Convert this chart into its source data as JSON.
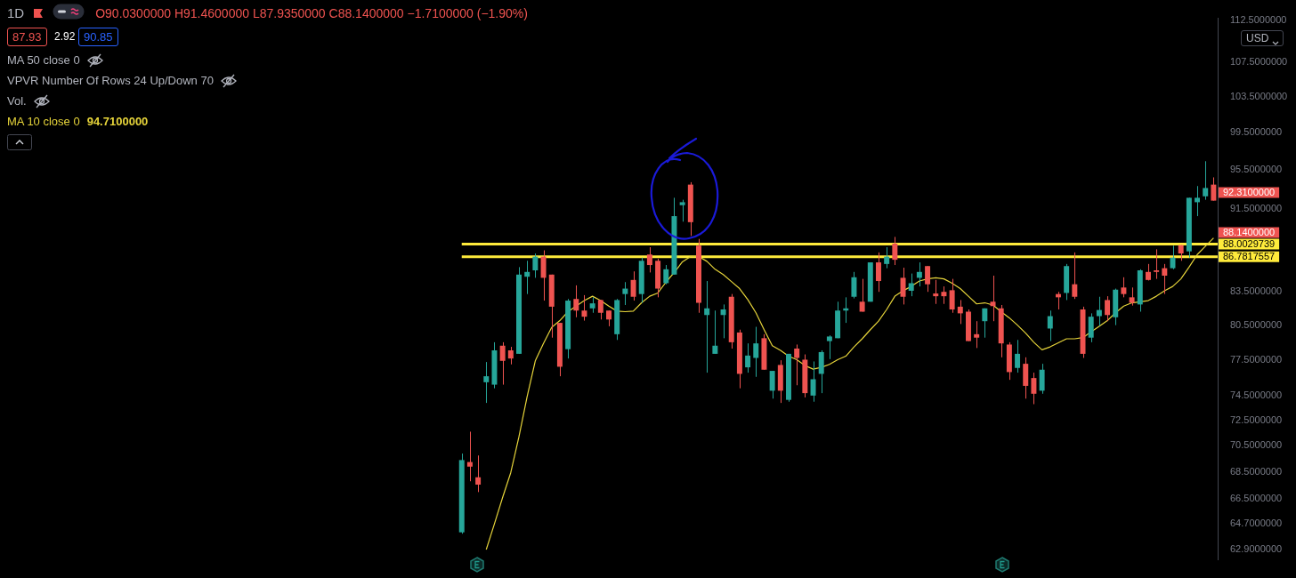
{
  "chart_data": {
    "type": "candlestick",
    "title": "1D",
    "categories": [
      null,
      null,
      null,
      null,
      null,
      null,
      null,
      null,
      null,
      null,
      null,
      null,
      null,
      null,
      null,
      null,
      null,
      null,
      null,
      null,
      null,
      null,
      null,
      null,
      null,
      null,
      null,
      null,
      null,
      null,
      null,
      null,
      null,
      null,
      null,
      null,
      null,
      null,
      null,
      null,
      null,
      null,
      null,
      null,
      null,
      null,
      null,
      null,
      null,
      null,
      null,
      null,
      null,
      null,
      null,
      null,
      null,
      null,
      null,
      null,
      null,
      null,
      null,
      null,
      null,
      null,
      null,
      null,
      null,
      null,
      null,
      null,
      null,
      null,
      null,
      null,
      null,
      null,
      null,
      null,
      null,
      null,
      null,
      null,
      null,
      null,
      null,
      null,
      null,
      null,
      null,
      null,
      null,
      null,
      null,
      null,
      null,
      null,
      null,
      null,
      null,
      null,
      null,
      null,
      null,
      null,
      null,
      null,
      null,
      null,
      null,
      null,
      null,
      null,
      null,
      null,
      null,
      null,
      null,
      null,
      null,
      null,
      null,
      null,
      null,
      null,
      null,
      null,
      null,
      null,
      null,
      null,
      null,
      null,
      null,
      null,
      null,
      null,
      null,
      null,
      null,
      null,
      null,
      null,
      null,
      null,
      null,
      null,
      null
    ],
    "ohlc": [
      null,
      null,
      null,
      null,
      null,
      null,
      null,
      null,
      null,
      null,
      null,
      null,
      null,
      null,
      null,
      null,
      null,
      null,
      null,
      null,
      null,
      null,
      null,
      null,
      null,
      null,
      null,
      null,
      null,
      null,
      null,
      null,
      null,
      null,
      null,
      null,
      null,
      null,
      null,
      null,
      null,
      null,
      null,
      null,
      null,
      null,
      null,
      null,
      null,
      null,
      null,
      null,
      null,
      null,
      null,
      null,
      [
        64.1,
        69.9,
        64.0,
        69.4
      ],
      [
        69.25,
        71.6,
        67.8,
        68.9
      ],
      [
        68.1,
        69.75,
        67.0,
        67.55
      ],
      [
        75.6,
        77.3,
        73.9,
        76.1
      ],
      [
        75.4,
        79.0,
        75.1,
        78.3
      ],
      [
        78.7,
        79.0,
        75.4,
        77.4
      ],
      [
        78.3,
        78.6,
        77.1,
        77.6
      ],
      [
        78.0,
        85.8,
        78.0,
        85.1
      ],
      [
        84.9,
        86.4,
        83.3,
        85.35
      ],
      [
        85.5,
        87.1,
        84.8,
        86.8
      ],
      [
        86.8,
        87.4,
        82.7,
        84.8
      ],
      [
        85.1,
        85.1,
        79.4,
        82.15
      ],
      [
        80.7,
        80.7,
        76.1,
        76.9
      ],
      [
        78.4,
        82.85,
        77.6,
        82.7
      ],
      [
        82.85,
        84.1,
        81.2,
        81.8
      ],
      [
        81.8,
        83.2,
        80.9,
        81.25
      ],
      [
        82.0,
        83.0,
        81.6,
        82.45
      ],
      [
        82.75,
        82.75,
        81.0,
        81.6
      ],
      [
        81.8,
        81.8,
        80.4,
        81.0
      ],
      [
        79.7,
        82.85,
        79.2,
        82.75
      ],
      [
        83.3,
        84.4,
        82.3,
        83.8
      ],
      [
        84.6,
        85.4,
        82.7,
        83.05
      ],
      [
        83.3,
        86.7,
        82.5,
        86.4
      ],
      [
        87.0,
        87.7,
        85.3,
        86.0
      ],
      [
        86.4,
        86.6,
        83.0,
        83.8
      ],
      [
        84.3,
        86.0,
        84.2,
        85.6
      ],
      [
        85.1,
        92.6,
        85.1,
        90.75
      ],
      [
        91.85,
        92.4,
        90.2,
        92.15
      ],
      [
        93.95,
        94.2,
        88.8,
        90.15
      ],
      [
        87.85,
        88.5,
        81.6,
        82.5
      ],
      [
        81.4,
        84.5,
        76.4,
        82.0
      ],
      [
        78.0,
        81.8,
        78.0,
        78.7
      ],
      [
        81.4,
        82.35,
        79.35,
        81.9
      ],
      [
        83.05,
        83.3,
        78.45,
        79.0
      ],
      [
        79.85,
        80.1,
        75.1,
        76.3
      ],
      [
        76.85,
        78.9,
        76.4,
        77.85
      ],
      [
        77.65,
        80.35,
        76.05,
        78.9
      ],
      [
        79.35,
        79.7,
        76.65,
        76.65
      ],
      [
        74.9,
        76.55,
        74.25,
        76.55
      ],
      [
        77.05,
        77.45,
        73.9,
        74.9
      ],
      [
        74.15,
        78.0,
        74.0,
        78.0
      ],
      [
        78.45,
        78.8,
        75.35,
        77.65
      ],
      [
        77.5,
        77.95,
        74.35,
        74.7
      ],
      [
        74.5,
        77.35,
        74.0,
        75.85
      ],
      [
        76.3,
        78.3,
        74.7,
        78.15
      ],
      [
        79.1,
        79.6,
        77.55,
        79.5
      ],
      [
        79.35,
        82.6,
        79.35,
        81.8
      ],
      [
        81.8,
        83.0,
        80.7,
        82.0
      ],
      [
        83.05,
        85.35,
        82.9,
        84.85
      ],
      [
        82.6,
        84.7,
        81.7,
        81.7
      ],
      [
        82.6,
        86.25,
        82.6,
        86.25
      ],
      [
        86.25,
        87.2,
        83.5,
        84.5
      ],
      [
        86.1,
        87.7,
        85.7,
        86.8
      ],
      [
        88.05,
        88.7,
        86.0,
        86.5
      ],
      [
        84.8,
        85.75,
        82.35,
        83.05
      ],
      [
        83.6,
        85.2,
        83.1,
        84.3
      ],
      [
        84.8,
        86.25,
        84.0,
        85.35
      ],
      [
        85.9,
        85.9,
        83.5,
        84.2
      ],
      [
        83.35,
        84.6,
        82.4,
        83.1
      ],
      [
        83.5,
        84.0,
        82.4,
        83.1
      ],
      [
        83.65,
        84.7,
        81.6,
        81.9
      ],
      [
        82.15,
        82.75,
        80.6,
        81.55
      ],
      [
        81.7,
        81.9,
        79.1,
        79.1
      ],
      [
        79.7,
        80.85,
        78.5,
        79.4
      ],
      [
        80.85,
        82.0,
        79.4,
        82.0
      ],
      [
        82.6,
        85.0,
        80.85,
        82.2
      ],
      [
        82.0,
        82.3,
        77.7,
        78.9
      ],
      [
        78.8,
        79.0,
        75.8,
        76.45
      ],
      [
        76.8,
        79.2,
        76.4,
        78.0
      ],
      [
        77.15,
        77.7,
        74.25,
        75.3
      ],
      [
        75.95,
        76.4,
        73.8,
        74.65
      ],
      [
        74.9,
        77.15,
        74.65,
        76.65
      ],
      [
        80.2,
        81.8,
        79.1,
        81.3
      ],
      [
        83.3,
        83.5,
        81.9,
        83.0
      ],
      [
        83.4,
        86.1,
        82.75,
        85.9
      ],
      [
        84.2,
        87.2,
        82.85,
        83.05
      ],
      [
        81.9,
        82.15,
        77.65,
        78.0
      ],
      [
        79.4,
        81.55,
        79.0,
        81.25
      ],
      [
        81.3,
        83.05,
        80.45,
        81.85
      ],
      [
        82.75,
        83.1,
        80.85,
        81.4
      ],
      [
        81.2,
        83.8,
        80.5,
        83.7
      ],
      [
        83.9,
        84.85,
        83.0,
        83.3
      ],
      [
        83.0,
        83.9,
        82.25,
        82.5
      ],
      [
        82.35,
        85.6,
        81.7,
        85.5
      ],
      [
        85.35,
        86.1,
        84.55,
        84.6
      ],
      [
        85.5,
        87.5,
        84.7,
        85.35
      ],
      [
        85.7,
        86.1,
        83.3,
        85.0
      ],
      [
        85.7,
        87.85,
        85.6,
        86.7
      ],
      [
        87.9,
        87.9,
        86.4,
        87.1
      ],
      [
        87.3,
        92.6,
        86.7,
        92.6
      ],
      [
        92.15,
        93.8,
        90.75,
        92.6
      ],
      [
        92.75,
        96.4,
        92.4,
        93.6
      ],
      [
        93.95,
        94.7,
        92.31,
        92.31
      ]
    ],
    "series": [
      {
        "name": "MA 10 close 0",
        "type": "line",
        "color": "#e6d43a",
        "values": [
          null,
          null,
          null,
          null,
          null,
          null,
          null,
          null,
          null,
          null,
          null,
          null,
          null,
          null,
          null,
          null,
          null,
          null,
          null,
          null,
          null,
          null,
          null,
          null,
          null,
          null,
          null,
          null,
          null,
          null,
          null,
          null,
          null,
          null,
          null,
          null,
          null,
          null,
          null,
          null,
          null,
          null,
          null,
          null,
          null,
          null,
          null,
          null,
          null,
          null,
          null,
          null,
          null,
          null,
          null,
          null,
          null,
          null,
          null,
          62.9,
          64.7,
          66.6,
          68.45,
          71.2,
          74.4,
          77.4,
          78.9,
          80.3,
          80.9,
          81.7,
          82.2,
          82.7,
          83.1,
          82.7,
          82.2,
          81.75,
          81.7,
          81.75,
          82.5,
          83.1,
          83.4,
          84.4,
          85.3,
          86.3,
          86.8,
          86.8,
          86.35,
          85.6,
          85.1,
          84.45,
          83.8,
          82.8,
          81.6,
          80.1,
          78.7,
          78.3,
          77.8,
          77.5,
          77.0,
          76.7,
          76.85,
          77.1,
          77.5,
          77.8,
          78.6,
          79.3,
          80.1,
          80.85,
          81.9,
          83.1,
          83.6,
          84.0,
          84.5,
          84.7,
          84.8,
          84.7,
          84.3,
          83.8,
          83.1,
          82.4,
          82.5,
          82.3,
          81.7,
          81.15,
          80.5,
          79.8,
          79.0,
          78.35,
          78.6,
          78.95,
          79.3,
          79.3,
          79.4,
          79.9,
          80.4,
          80.9,
          81.6,
          82.2,
          82.5,
          82.6,
          82.7,
          83.1,
          83.6,
          84.0,
          84.7,
          85.8,
          87.0,
          87.8,
          88.6
        ]
      }
    ],
    "log": "y",
    "ylim": [
      62.2,
      112.8
    ],
    "yticks": [
      {
        "value": 62.9,
        "label": "62.9000000"
      },
      {
        "value": 64.7,
        "label": "64.7000000"
      },
      {
        "value": 66.5,
        "label": "66.5000000"
      },
      {
        "value": 68.5,
        "label": "68.5000000"
      },
      {
        "value": 70.5,
        "label": "70.5000000"
      },
      {
        "value": 72.5,
        "label": "72.5000000"
      },
      {
        "value": 74.5,
        "label": "74.5000000"
      },
      {
        "value": 77.5,
        "label": "77.5000000"
      },
      {
        "value": 80.5,
        "label": "80.5000000"
      },
      {
        "value": 83.5,
        "label": "83.5000000"
      },
      {
        "value": 91.5,
        "label": "91.5000000"
      },
      {
        "value": 95.5,
        "label": "95.5000000"
      },
      {
        "value": 99.5,
        "label": "99.5000000"
      },
      {
        "value": 103.5,
        "label": "103.5000000"
      },
      {
        "value": 107.5,
        "label": "107.5000000"
      },
      {
        "value": 112.5,
        "label": "112.5000000"
      }
    ],
    "tick_labels": "y",
    "legend": "top left",
    "marker": "none",
    "ref_lines": [
      {
        "axis": "y",
        "value": 88.0029739,
        "label": "88.0029739",
        "color": "#ffeb3b"
      },
      {
        "axis": "y",
        "value": 86.7817557,
        "label": "86.7817557",
        "color": "#ffeb3b"
      }
    ],
    "annotations": [
      "O90.0300000 H91.4600000 L87.9350000 C88.1400000 −1.7100000 (−1.90%)",
      "87.93",
      "2.92",
      "90.85",
      "MA 50 close 0",
      "VPVR Number Of Rows 24 Up/Down 70",
      "Vol.",
      "94.7100000",
      "USD",
      "92.3100000",
      "88.1400000"
    ]
  }
}
